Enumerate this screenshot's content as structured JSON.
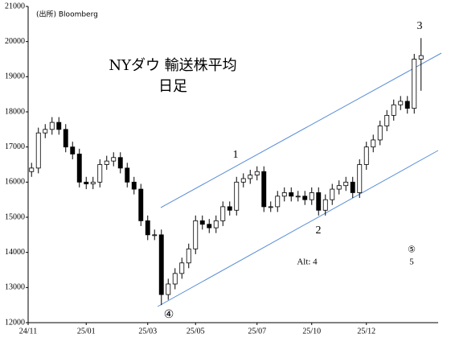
{
  "chart_data": {
    "type": "candlestick",
    "title": "NYダウ 輸送株平均",
    "subtitle": "日足",
    "source": "(出所) Bloomberg",
    "annotations": [
      "1",
      "2",
      "3",
      "④",
      "⑤",
      "5",
      "Alt: 4"
    ],
    "categories": [
      "24/11",
      null,
      null,
      null,
      null,
      null,
      null,
      null,
      "25/01",
      null,
      null,
      null,
      null,
      null,
      null,
      null,
      null,
      "25/03",
      null,
      null,
      null,
      null,
      null,
      null,
      "25/05",
      null,
      null,
      null,
      null,
      null,
      null,
      null,
      null,
      "25/07",
      null,
      null,
      null,
      null,
      null,
      null,
      null,
      "25/10",
      null,
      null,
      null,
      null,
      null,
      null,
      null,
      "25/12",
      null,
      null,
      null,
      null,
      null,
      null,
      null,
      null,
      null,
      null
    ],
    "open": [
      16300,
      16400,
      17400,
      17500,
      17700,
      17500,
      17000,
      16800,
      16000,
      15950,
      16000,
      16500,
      16600,
      16700,
      16400,
      16000,
      15800,
      14900,
      14500,
      14500,
      12800,
      13100,
      13400,
      13700,
      14100,
      14900,
      14800,
      14700,
      14900,
      15300,
      15200,
      16000,
      16100,
      16200,
      16300,
      15300,
      15300,
      15600,
      15700,
      15600,
      15600,
      15500,
      15700,
      15200,
      15500,
      15800,
      15900,
      16000,
      15700,
      16500,
      17000,
      17200,
      17600,
      17900,
      18200,
      18300,
      18100,
      19500,
      null,
      null
    ],
    "high": [
      16550,
      17550,
      17650,
      17850,
      17850,
      17650,
      17150,
      16950,
      16150,
      16150,
      16650,
      16750,
      16850,
      16850,
      16550,
      16150,
      15950,
      15050,
      14650,
      14650,
      13250,
      13550,
      13850,
      14250,
      15050,
      15050,
      14950,
      15050,
      15450,
      15450,
      16150,
      16250,
      16350,
      16450,
      16450,
      15450,
      15750,
      15850,
      15850,
      15750,
      15750,
      15850,
      15850,
      15650,
      15950,
      16050,
      16150,
      16150,
      16650,
      17150,
      17350,
      17750,
      18050,
      18350,
      18450,
      18450,
      19650,
      20100,
      null,
      null
    ],
    "low": [
      16150,
      16250,
      17250,
      17350,
      17350,
      16850,
      16650,
      15850,
      15800,
      15800,
      15850,
      16350,
      16450,
      16250,
      15850,
      15650,
      14750,
      14350,
      14350,
      12500,
      12650,
      12950,
      13250,
      13550,
      13950,
      14650,
      14550,
      14550,
      14750,
      15050,
      15050,
      15850,
      15950,
      16050,
      15150,
      15150,
      15150,
      15450,
      15450,
      15450,
      15350,
      15350,
      15050,
      15050,
      15350,
      15650,
      15750,
      15550,
      15550,
      16350,
      16850,
      17050,
      17450,
      17750,
      18050,
      17950,
      17950,
      18600,
      null,
      null
    ],
    "close": [
      16400,
      17400,
      17500,
      17700,
      17500,
      17000,
      16800,
      16000,
      15950,
      16000,
      16500,
      16600,
      16700,
      16400,
      16000,
      15800,
      14900,
      14500,
      14500,
      12800,
      13100,
      13400,
      13700,
      14100,
      14900,
      14800,
      14700,
      14900,
      15300,
      15200,
      16000,
      16100,
      16200,
      16300,
      15300,
      15300,
      15600,
      15700,
      15600,
      15600,
      15500,
      15700,
      15200,
      15500,
      15800,
      15900,
      16000,
      15700,
      16500,
      17000,
      17200,
      17600,
      17900,
      18200,
      18300,
      18100,
      19500,
      19600,
      null,
      null
    ],
    "color": "#000000",
    "ylim": [
      12000,
      21000
    ],
    "yticks": [
      12000,
      13000,
      14000,
      15000,
      16000,
      17000,
      18000,
      19000,
      20000,
      21000
    ],
    "grid": false
  }
}
